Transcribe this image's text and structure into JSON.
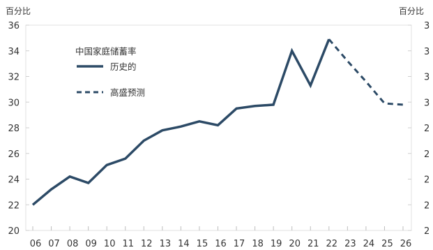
{
  "chart_data": {
    "type": "line",
    "title": "",
    "unit_left": "百分比",
    "unit_right": "百分比",
    "legend_title": "中国家庭储蓄率",
    "categories": [
      "06",
      "07",
      "08",
      "09",
      "10",
      "11",
      "12",
      "13",
      "14",
      "15",
      "16",
      "17",
      "18",
      "19",
      "20",
      "21",
      "22",
      "23",
      "24",
      "25",
      "26"
    ],
    "series": [
      {
        "name": "历史的",
        "style": "solid",
        "color": "#2c4a66",
        "values": [
          22.0,
          23.2,
          24.2,
          23.7,
          25.1,
          25.6,
          27.0,
          27.8,
          28.1,
          28.5,
          28.2,
          29.5,
          29.7,
          29.8,
          34.0,
          31.3,
          34.9,
          null,
          null,
          null,
          null
        ]
      },
      {
        "name": "高盛预测",
        "style": "dashed",
        "color": "#2c4a66",
        "values": [
          null,
          null,
          null,
          null,
          null,
          null,
          null,
          null,
          null,
          null,
          null,
          null,
          null,
          null,
          null,
          null,
          34.9,
          33.2,
          31.6,
          29.9,
          29.8
        ]
      }
    ],
    "ylim": [
      20,
      36
    ],
    "yticks": [
      "20",
      "22",
      "24",
      "26",
      "28",
      "30",
      "32",
      "34",
      "36"
    ],
    "y2ticks_visible": [
      "2",
      "2",
      "2",
      "2",
      "2",
      "3",
      "3",
      "3",
      "3"
    ],
    "grid": false,
    "legend_position": "top-left"
  }
}
